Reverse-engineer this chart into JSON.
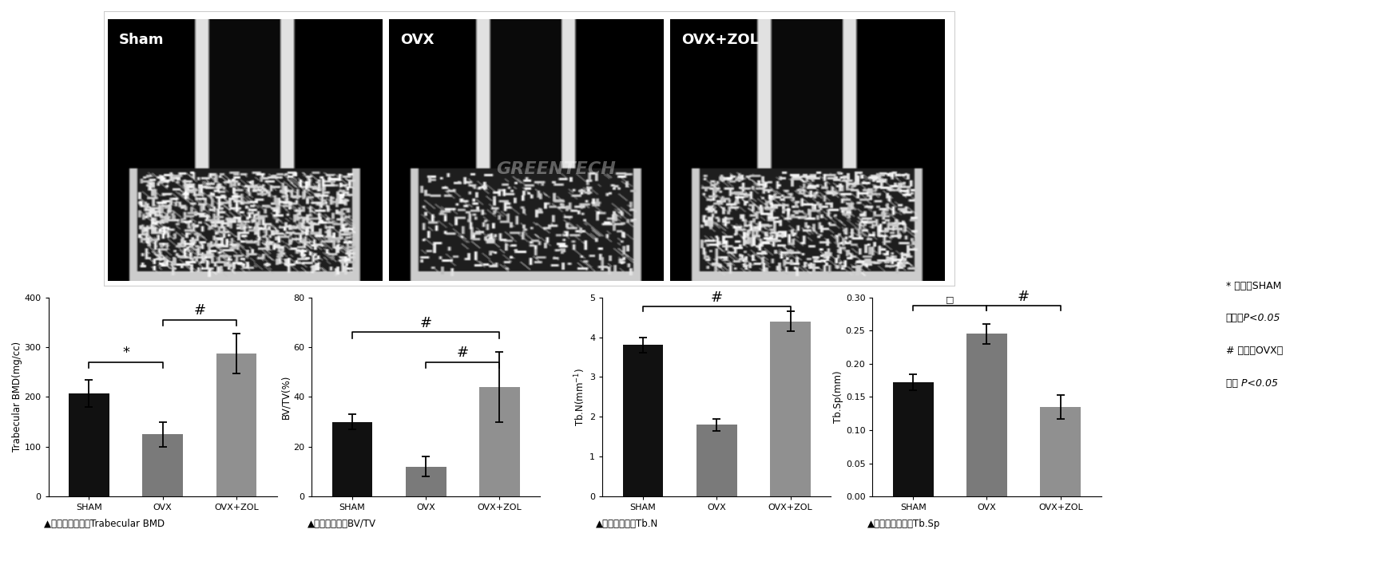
{
  "chart1": {
    "ylabel": "Trabecular BMD(mg/cc)",
    "categories": [
      "SHAM",
      "OVX",
      "OVX+ZOL"
    ],
    "values": [
      207,
      125,
      287
    ],
    "errors": [
      28,
      25,
      40
    ],
    "bar_colors": [
      "#111111",
      "#7a7a7a",
      "#909090"
    ],
    "ylim": [
      0,
      400
    ],
    "yticks": [
      0,
      100,
      200,
      300,
      400
    ]
  },
  "chart2": {
    "ylabel": "BV/TV(%)",
    "categories": [
      "SHAM",
      "OVX",
      "OVX+ZOL"
    ],
    "values": [
      30,
      12,
      44
    ],
    "errors": [
      3,
      4,
      14
    ],
    "bar_colors": [
      "#111111",
      "#7a7a7a",
      "#909090"
    ],
    "ylim": [
      0,
      80
    ],
    "yticks": [
      0,
      20,
      40,
      60,
      80
    ]
  },
  "chart3": {
    "ylabel": "Tb.N(mm$^{-1}$)",
    "categories": [
      "SHAM",
      "OVX",
      "OVX+ZOL"
    ],
    "values": [
      3.8,
      1.8,
      4.4
    ],
    "errors": [
      0.2,
      0.15,
      0.25
    ],
    "bar_colors": [
      "#111111",
      "#7a7a7a",
      "#909090"
    ],
    "ylim": [
      0,
      5
    ],
    "yticks": [
      0,
      1,
      2,
      3,
      4,
      5
    ]
  },
  "chart4": {
    "ylabel": "Tb.Sp(mm)",
    "categories": [
      "SHAM",
      "OVX",
      "OVX+ZOL"
    ],
    "values": [
      0.172,
      0.245,
      0.135
    ],
    "errors": [
      0.012,
      0.015,
      0.018
    ],
    "bar_colors": [
      "#111111",
      "#7a7a7a",
      "#909090"
    ],
    "ylim": [
      0,
      0.3
    ],
    "yticks": [
      0.0,
      0.05,
      0.1,
      0.15,
      0.2,
      0.25,
      0.3
    ]
  },
  "image_labels": [
    "Sham",
    "OVX",
    "OVX+ZOL"
  ],
  "legend_lines": [
    "* 代表和SHAM",
    "组相比P<0.05",
    "# 代表和OVX组",
    "相比 P<0.05"
  ],
  "caption_texts": [
    "▲松质骨骨密度：Trabecular BMD",
    "▲骨体积分数：BV/TV",
    "▲骨小梁数量：Tb.N",
    "▲骨小梁分离度：Tb.Sp"
  ],
  "bar_width": 0.55,
  "bg_color": "#ffffff"
}
